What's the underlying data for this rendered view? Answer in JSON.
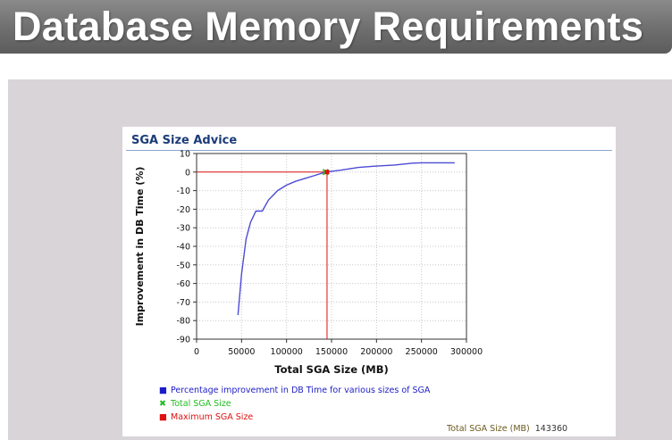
{
  "slide": {
    "title": "Database Memory Requirements"
  },
  "panel": {
    "title": "SGA Size Advice"
  },
  "chart_data": {
    "type": "line",
    "xlabel": "Total SGA Size (MB)",
    "ylabel": "Improvement in DB Time (%)",
    "xlim": [
      0,
      300000
    ],
    "ylim": [
      -90,
      10
    ],
    "xticks": [
      0,
      50000,
      100000,
      150000,
      200000,
      250000,
      300000
    ],
    "yticks": [
      10,
      0,
      -10,
      -20,
      -30,
      -40,
      -50,
      -60,
      -70,
      -80,
      -90
    ],
    "grid": true,
    "series": [
      {
        "name": "Percentage improvement in DB Time for various sizes of SGA",
        "color": "#4b4bd6",
        "x": [
          46000,
          50000,
          55000,
          60000,
          66000,
          73000,
          80000,
          90000,
          100000,
          110000,
          120000,
          130000,
          143360,
          160000,
          180000,
          200000,
          220000,
          240000,
          250000,
          270000,
          287000
        ],
        "y": [
          -77,
          -55,
          -36,
          -27,
          -21,
          -21,
          -15,
          -10,
          -7,
          -5,
          -3.5,
          -2,
          0,
          1,
          2.5,
          3.2,
          3.8,
          4.8,
          5,
          5,
          5
        ]
      }
    ],
    "markers": [
      {
        "name": "Total SGA Size",
        "x": 143360,
        "y": 0,
        "color": "#22cc22"
      },
      {
        "name": "Maximum SGA Size",
        "x": 145000,
        "y": 0,
        "color": "#dd1111"
      }
    ],
    "reference_lines": {
      "x": 145000,
      "y": 0,
      "color": "#dd1111"
    }
  },
  "legend": {
    "items": [
      {
        "marker": "■",
        "label": "Percentage improvement in DB Time for various sizes of SGA",
        "color": "#1c1cc8"
      },
      {
        "marker": "✖",
        "label": "Total SGA Size",
        "color": "#22bb22"
      },
      {
        "marker": "■",
        "label": "Maximum SGA Size",
        "color": "#dd1111"
      }
    ]
  },
  "footer": {
    "label": "Total SGA Size (MB)",
    "value": "143360"
  }
}
